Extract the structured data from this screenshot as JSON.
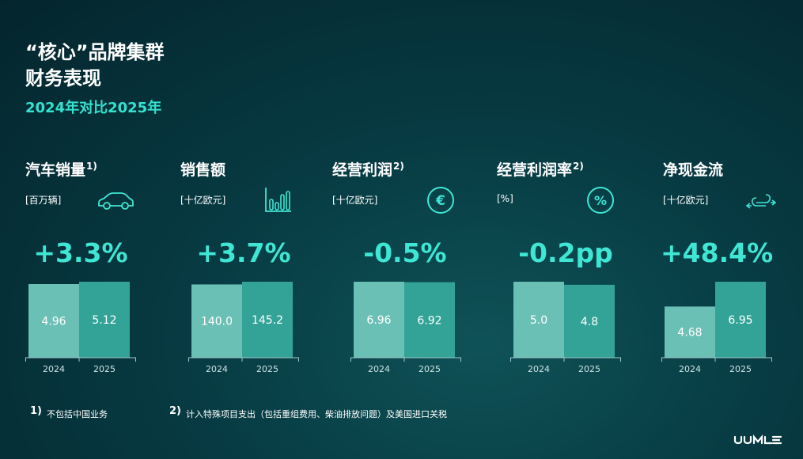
{
  "header": {
    "title_line1": "“核心”品牌集群",
    "title_line2": "财务表现",
    "subtitle": "2024年对比2025年"
  },
  "colors": {
    "bar_2024": "#6bc0b6",
    "bar_2025": "#33a398",
    "accent": "#3fe6d3"
  },
  "panels": [
    {
      "title": "汽车销量",
      "footnote_ref": "1)",
      "unit": "[百万辆]",
      "icon": "car-icon",
      "change": "+3.3%"
    },
    {
      "title": "销售额",
      "footnote_ref": "",
      "unit": "[十亿欧元]",
      "icon": "bar-chart-icon",
      "change": "+3.7%"
    },
    {
      "title": "经营利润",
      "footnote_ref": "2)",
      "unit": "[十亿欧元]",
      "icon": "euro-icon",
      "change": "-0.5%"
    },
    {
      "title": "经营利润率",
      "footnote_ref": "2)",
      "unit": "[%]",
      "icon": "percent-icon",
      "change": "-0.2pp"
    },
    {
      "title": "净现金流",
      "footnote_ref": "",
      "unit": "[十亿欧元]",
      "icon": "cash-flow-icon",
      "change": "+48.4%"
    }
  ],
  "chart_data": [
    {
      "type": "bar",
      "categories": [
        "2024",
        "2025"
      ],
      "values": [
        4.96,
        5.12
      ],
      "labels": [
        "4.96",
        "5.12"
      ]
    },
    {
      "type": "bar",
      "categories": [
        "2024",
        "2025"
      ],
      "values": [
        140.0,
        145.2
      ],
      "labels": [
        "140.0",
        "145.2"
      ]
    },
    {
      "type": "bar",
      "categories": [
        "2024",
        "2025"
      ],
      "values": [
        6.96,
        6.92
      ],
      "labels": [
        "6.96",
        "6.92"
      ]
    },
    {
      "type": "bar",
      "categories": [
        "2024",
        "2025"
      ],
      "values": [
        5.0,
        4.8
      ],
      "labels": [
        "5.0",
        "4.8"
      ]
    },
    {
      "type": "bar",
      "categories": [
        "2024",
        "2025"
      ],
      "values": [
        4.68,
        6.95
      ],
      "labels": [
        "4.68",
        "6.95"
      ]
    }
  ],
  "footnotes": [
    {
      "mark": "1)",
      "text": "不包括中国业务"
    },
    {
      "mark": "2)",
      "text": "计入特殊项目支出（包括重组费用、柴油排放问题）及美国进口关税"
    }
  ]
}
